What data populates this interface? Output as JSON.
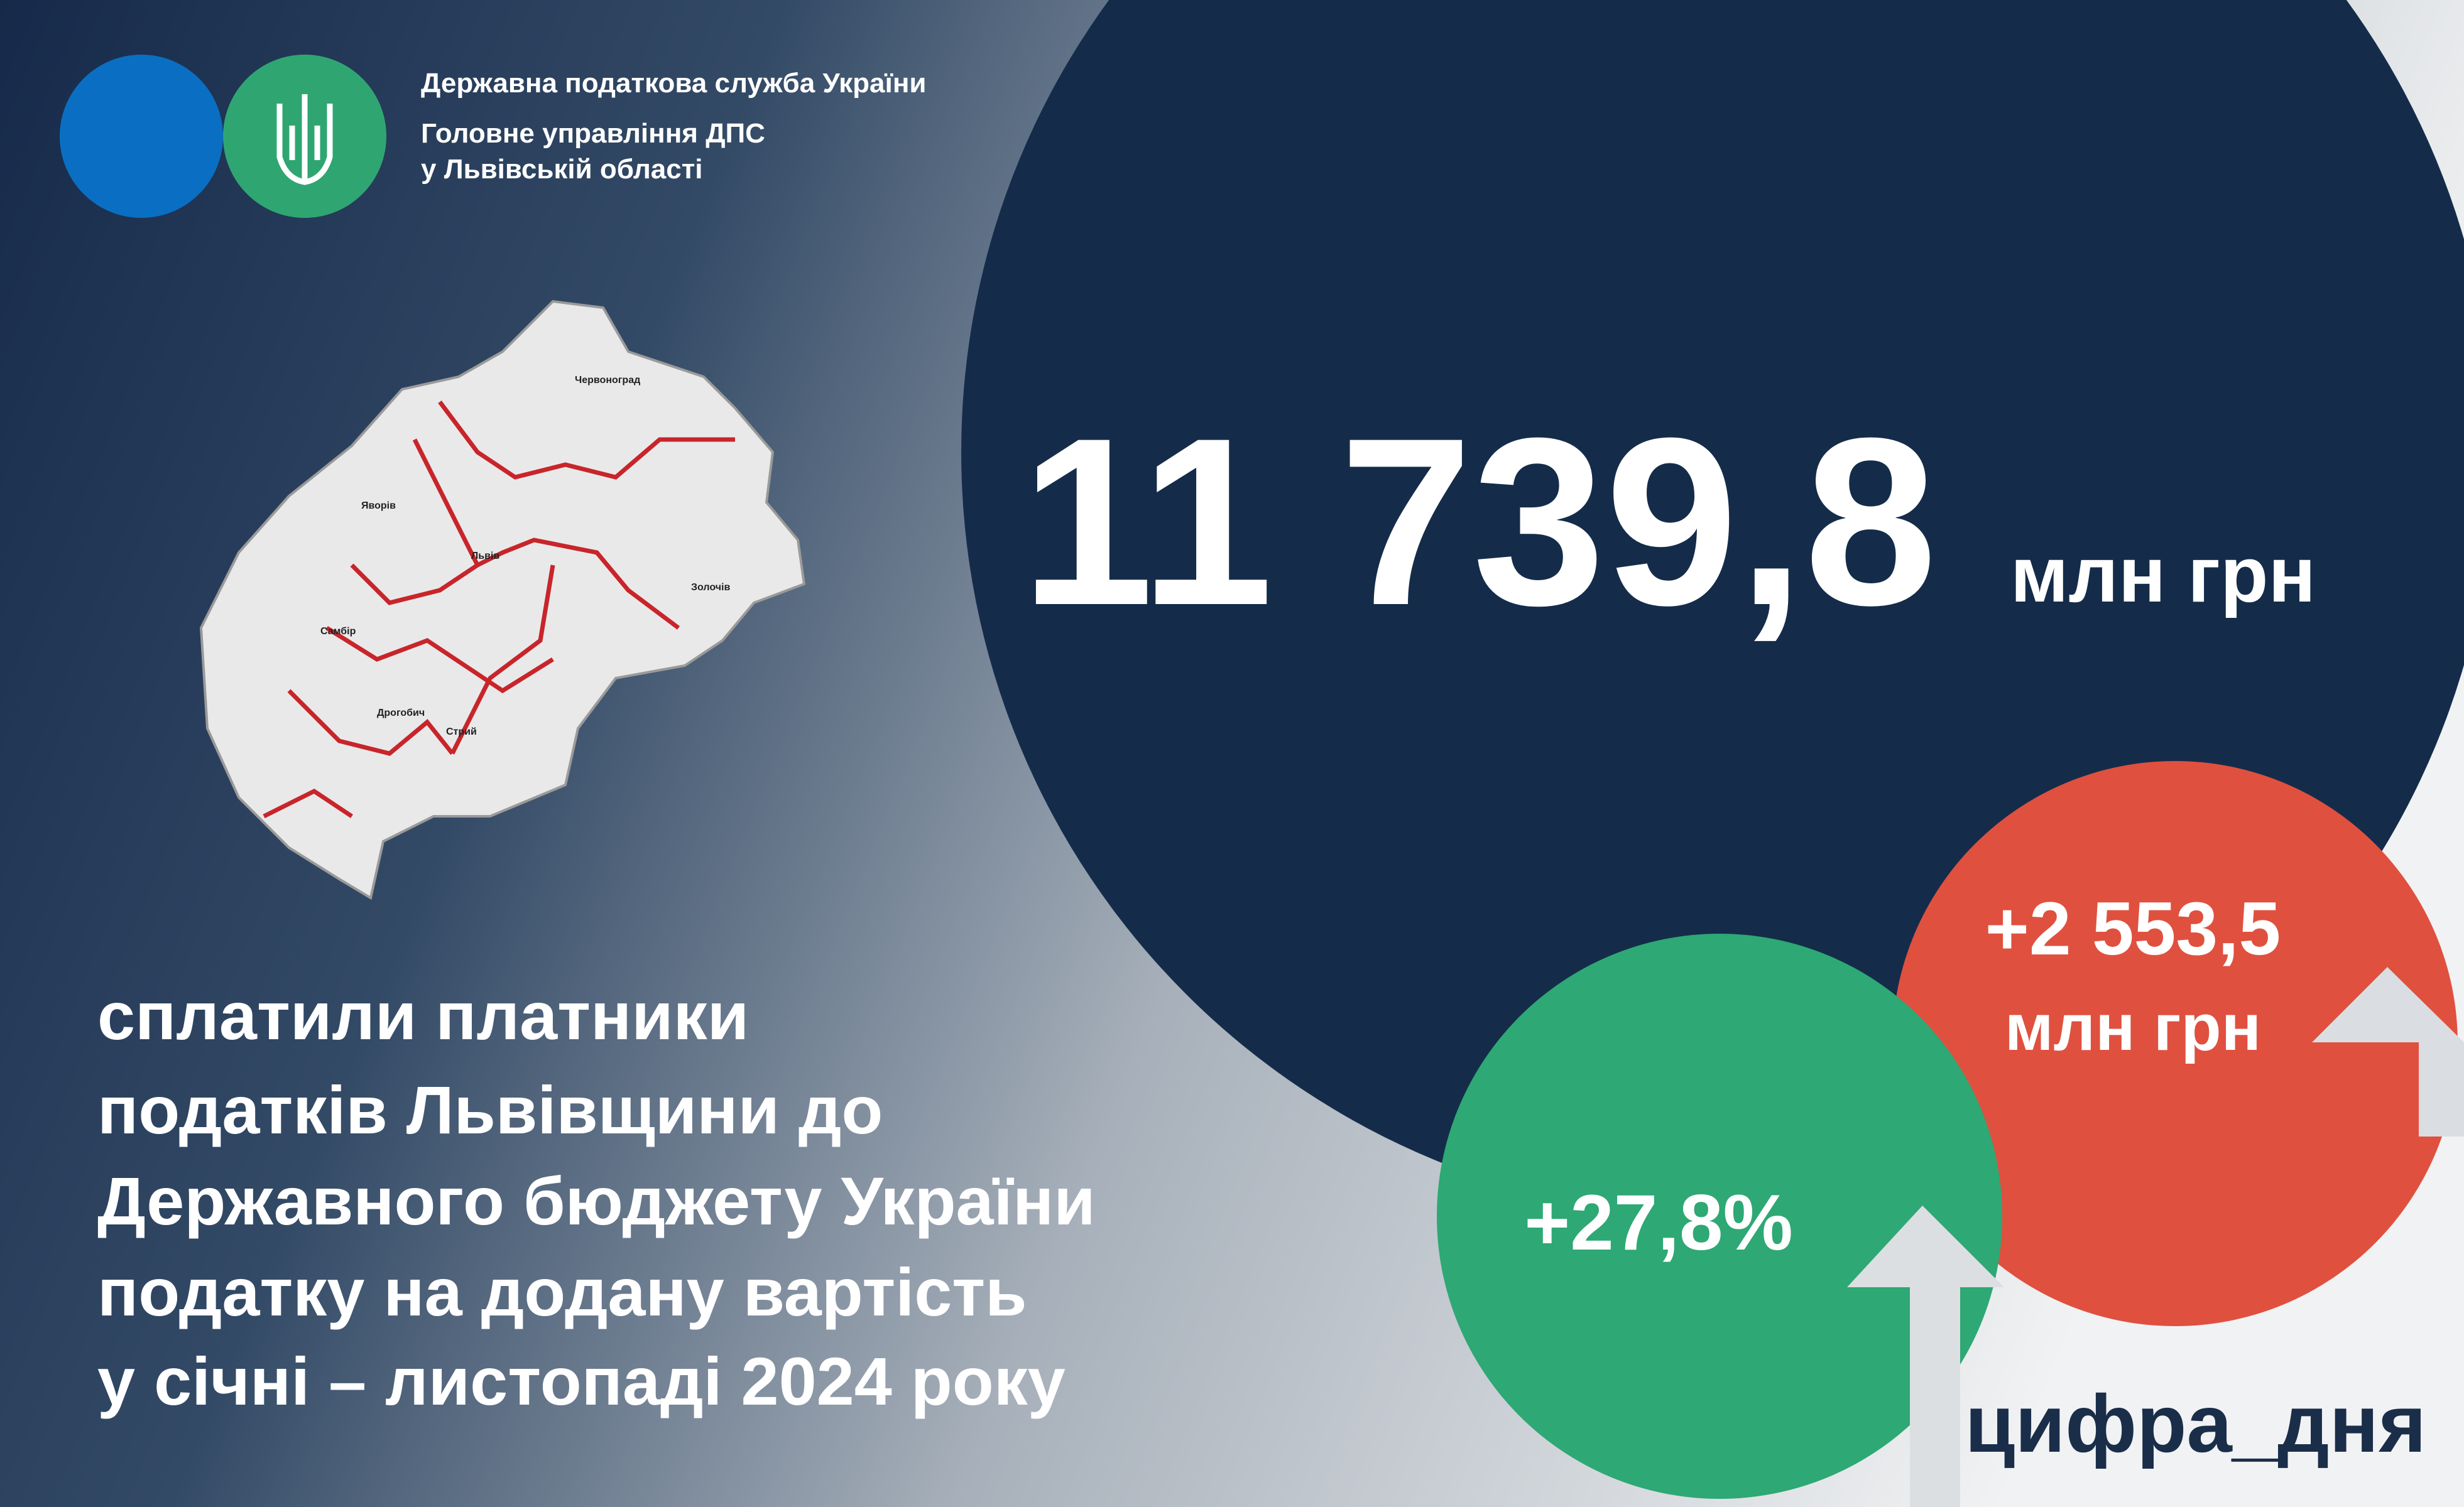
{
  "header": {
    "org_lines": [
      "Державна податкова служба України",
      "Головне управління ДПС",
      "у Львівській області"
    ]
  },
  "map": {
    "cities": [
      "Червоноград",
      "Яворів",
      "Львів",
      "Золочів",
      "Самбір",
      "Дрогобич",
      "Стрий"
    ]
  },
  "main": {
    "value": "11 739,8",
    "unit": "млн грн"
  },
  "growth": {
    "absolute": "+2 553,5",
    "absolute_unit": "млн грн",
    "percent": "+27,8%"
  },
  "caption": {
    "lines": [
      "сплатили платники",
      "податків Львівщини до",
      "Державного бюджету України",
      "податку на додану вартість",
      "у січні – листопаді 2024 року"
    ]
  },
  "hashtag": "цифра_дня"
}
